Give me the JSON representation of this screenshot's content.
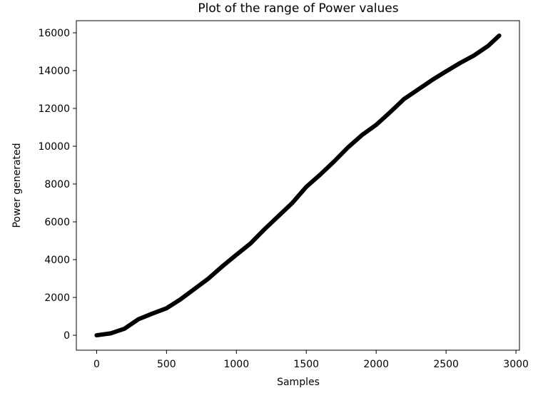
{
  "chart_data": {
    "type": "line",
    "title": "Plot of the range of Power values",
    "x_label": "Samples",
    "y_label": "Power generated",
    "x": [
      0,
      100,
      200,
      300,
      400,
      500,
      600,
      700,
      800,
      900,
      1000,
      1100,
      1200,
      1300,
      1400,
      1500,
      1600,
      1700,
      1800,
      1900,
      2000,
      2100,
      2200,
      2300,
      2400,
      2500,
      2600,
      2700,
      2800,
      2880
    ],
    "values": [
      0,
      100,
      350,
      850,
      1150,
      1430,
      1900,
      2450,
      3000,
      3650,
      4260,
      4850,
      5600,
      6300,
      7000,
      7850,
      8500,
      9200,
      9950,
      10600,
      11130,
      11800,
      12500,
      13000,
      13500,
      13960,
      14400,
      14800,
      15300,
      15850
    ],
    "color": "#000000",
    "xlim": [
      -145,
      3025
    ],
    "xticks": [
      0,
      500,
      1000,
      1500,
      2000,
      2500,
      3000
    ],
    "ylim": [
      -790,
      16640
    ],
    "yticks": [
      0,
      2000,
      4000,
      6000,
      8000,
      10000,
      12000,
      14000,
      16000
    ]
  }
}
